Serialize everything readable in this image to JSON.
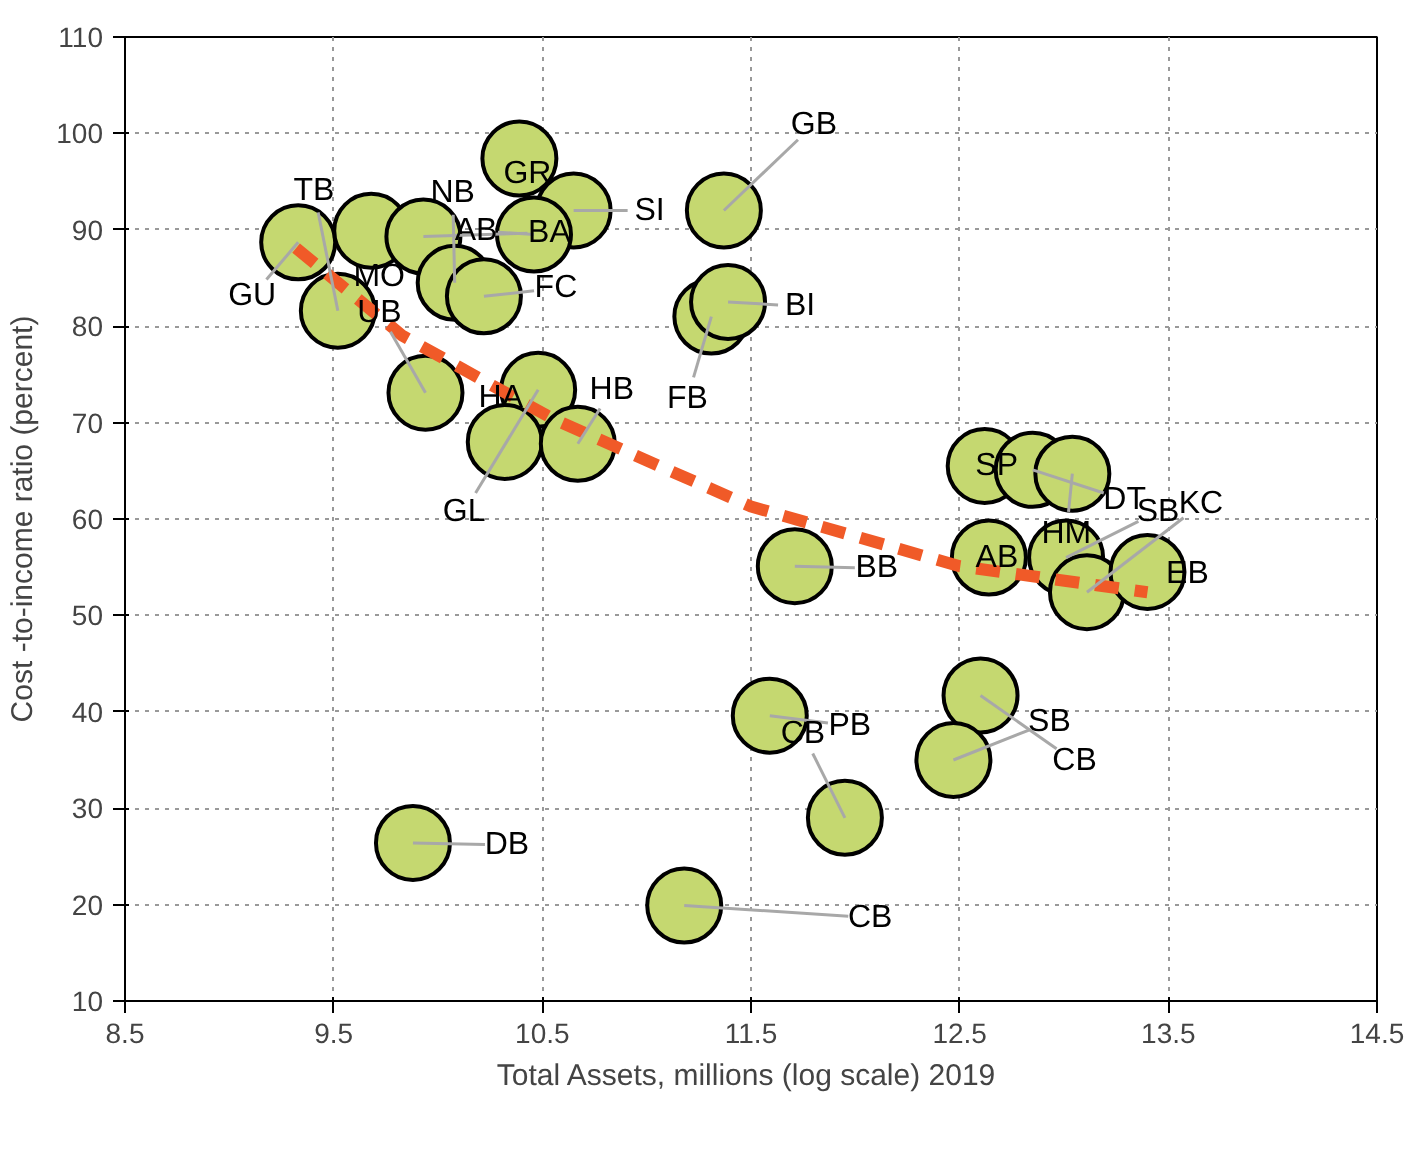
{
  "chart_data": {
    "type": "scatter",
    "xlabel": "Total Assets, millions (log scale)  2019",
    "ylabel": "Cost -to-income ratio (percent)",
    "xlim": [
      8.5,
      14.5
    ],
    "xticks": [
      {
        "value": 8.5,
        "label": "8.5"
      },
      {
        "value": 9.5,
        "label": "9.5"
      },
      {
        "value": 10.5,
        "label": "10.5"
      },
      {
        "value": 11.5,
        "label": "11.5"
      },
      {
        "value": 12.5,
        "label": "12.5"
      },
      {
        "value": 13.5,
        "label": "13.5"
      },
      {
        "value": 14.5,
        "label": "14.5"
      }
    ],
    "ylim": [
      10,
      110
    ],
    "yticks": [
      10,
      20,
      30,
      40,
      50,
      60,
      70,
      80,
      90,
      100,
      110
    ],
    "grid": true,
    "marker": "circle",
    "series": [
      {
        "color": "#c5d870",
        "x": [
          9.33,
          9.68,
          9.93,
          9.52,
          10.08,
          10.22,
          10.39,
          10.65,
          10.46,
          9.94,
          10.48,
          10.32,
          10.67,
          11.37,
          11.31,
          11.39,
          12.62,
          12.85,
          13.04,
          12.64,
          13.01,
          13.11,
          13.4,
          11.71,
          9.88,
          11.59,
          11.95,
          11.18,
          12.6,
          12.47
        ],
        "values": [
          88.7,
          89.9,
          89.3,
          81.6,
          84.5,
          83.1,
          97.4,
          92.0,
          89.5,
          73.1,
          73.4,
          68.0,
          67.8,
          92.0,
          81.0,
          82.5,
          65.5,
          65.1,
          64.7,
          56.0,
          56.0,
          52.4,
          54.5,
          55.1,
          26.4,
          39.6,
          29.0,
          19.9,
          41.7,
          35.0
        ]
      },
      {
        "type": "line",
        "color": "#f05a28",
        "line_style": "dashed",
        "marker": "none",
        "x": [
          9.32,
          9.83,
          10.55,
          11.06,
          11.5,
          12.5,
          13.4
        ],
        "values": [
          88.1,
          79.0,
          70.4,
          65.5,
          61.3,
          55.1,
          52.4
        ]
      }
    ],
    "annotations": [
      {
        "text": "GB",
        "x": 11.37,
        "y": 92.0
      },
      {
        "text": "NB",
        "x": 10.08,
        "y": 84.5
      },
      {
        "text": "GR",
        "x": 10.39,
        "y": 97.4
      },
      {
        "text": "BA",
        "x": 9.93,
        "y": 89.3
      },
      {
        "text": "AB",
        "x": 10.46,
        "y": 89.5
      },
      {
        "text": "SI",
        "x": 10.65,
        "y": 92.0
      },
      {
        "text": "TB",
        "x": 9.52,
        "y": 81.6
      },
      {
        "text": "GU",
        "x": 9.33,
        "y": 88.7
      },
      {
        "text": "MO",
        "x": 9.68,
        "y": 89.9
      },
      {
        "text": "UB",
        "x": 9.94,
        "y": 73.1
      },
      {
        "text": "FC",
        "x": 10.22,
        "y": 83.1
      },
      {
        "text": "BI",
        "x": 11.39,
        "y": 82.5
      },
      {
        "text": "FB",
        "x": 11.31,
        "y": 81.0
      },
      {
        "text": "HA",
        "x": 10.32,
        "y": 68.0
      },
      {
        "text": "HB",
        "x": 10.67,
        "y": 67.8
      },
      {
        "text": "GL",
        "x": 10.48,
        "y": 73.4
      },
      {
        "text": "SP",
        "x": 12.62,
        "y": 65.5
      },
      {
        "text": "DT",
        "x": 12.85,
        "y": 65.1
      },
      {
        "text": "SB",
        "x": 13.01,
        "y": 56.0
      },
      {
        "text": "KC",
        "x": 13.11,
        "y": 52.4
      },
      {
        "text": "HM",
        "x": 13.04,
        "y": 64.7
      },
      {
        "text": "AB",
        "x": 12.64,
        "y": 56.0
      },
      {
        "text": "EB",
        "x": 13.4,
        "y": 54.5
      },
      {
        "text": "BB",
        "x": 11.71,
        "y": 55.1
      },
      {
        "text": "PB",
        "x": 11.59,
        "y": 39.6
      },
      {
        "text": "CB",
        "x": 11.95,
        "y": 29.0
      },
      {
        "text": "SB",
        "x": 12.47,
        "y": 35.0
      },
      {
        "text": "CB",
        "x": 12.6,
        "y": 41.7
      },
      {
        "text": "CB",
        "x": 11.18,
        "y": 19.9
      },
      {
        "text": "DB",
        "x": 9.88,
        "y": 26.4
      }
    ]
  }
}
